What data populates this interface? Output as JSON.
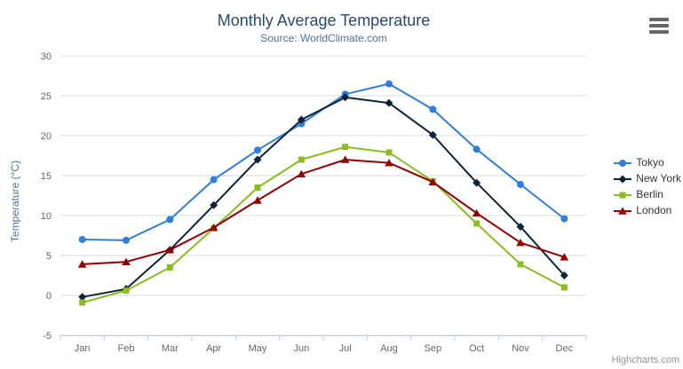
{
  "chart_data": {
    "type": "line",
    "title": "Monthly Average Temperature",
    "subtitle": "Source: WorldClimate.com",
    "categories": [
      "Jan",
      "Feb",
      "Mar",
      "Apr",
      "May",
      "Jun",
      "Jul",
      "Aug",
      "Sep",
      "Oct",
      "Nov",
      "Dec"
    ],
    "series": [
      {
        "name": "Tokyo",
        "color": "#2f7ed8",
        "marker": "circle",
        "values": [
          7.0,
          6.9,
          9.5,
          14.5,
          18.2,
          21.5,
          25.2,
          26.5,
          23.3,
          18.3,
          13.9,
          9.6
        ]
      },
      {
        "name": "New York",
        "color": "#0d233a",
        "marker": "diamond",
        "values": [
          -0.2,
          0.8,
          5.7,
          11.3,
          17.0,
          22.0,
          24.8,
          24.1,
          20.1,
          14.1,
          8.6,
          2.5
        ]
      },
      {
        "name": "Berlin",
        "color": "#8bbc21",
        "marker": "square",
        "values": [
          -0.9,
          0.6,
          3.5,
          8.4,
          13.5,
          17.0,
          18.6,
          17.9,
          14.3,
          9.0,
          3.9,
          1.0
        ]
      },
      {
        "name": "London",
        "color": "#910000",
        "marker": "triangle",
        "values": [
          3.9,
          4.2,
          5.7,
          8.5,
          11.9,
          15.2,
          17.0,
          16.6,
          14.2,
          10.3,
          6.6,
          4.8
        ]
      }
    ],
    "xlabel": "",
    "ylabel": "Temperature (°C)",
    "ylim": [
      -5,
      30
    ],
    "yticks": [
      -5,
      0,
      5,
      10,
      15,
      20,
      25,
      30
    ],
    "grid": true,
    "legend_position": "right"
  },
  "colors": {
    "grid_line": "#D8D8D8",
    "axis_line": "#C0D0E0",
    "tick_label": "#666666",
    "title": "#274b6d",
    "subtitle": "#4d759e",
    "axis_title": "#4d759e",
    "legend_text": "#333333",
    "credit": "#909090",
    "menu_icon": "#666666"
  },
  "credits": {
    "label": "Highcharts.com"
  }
}
